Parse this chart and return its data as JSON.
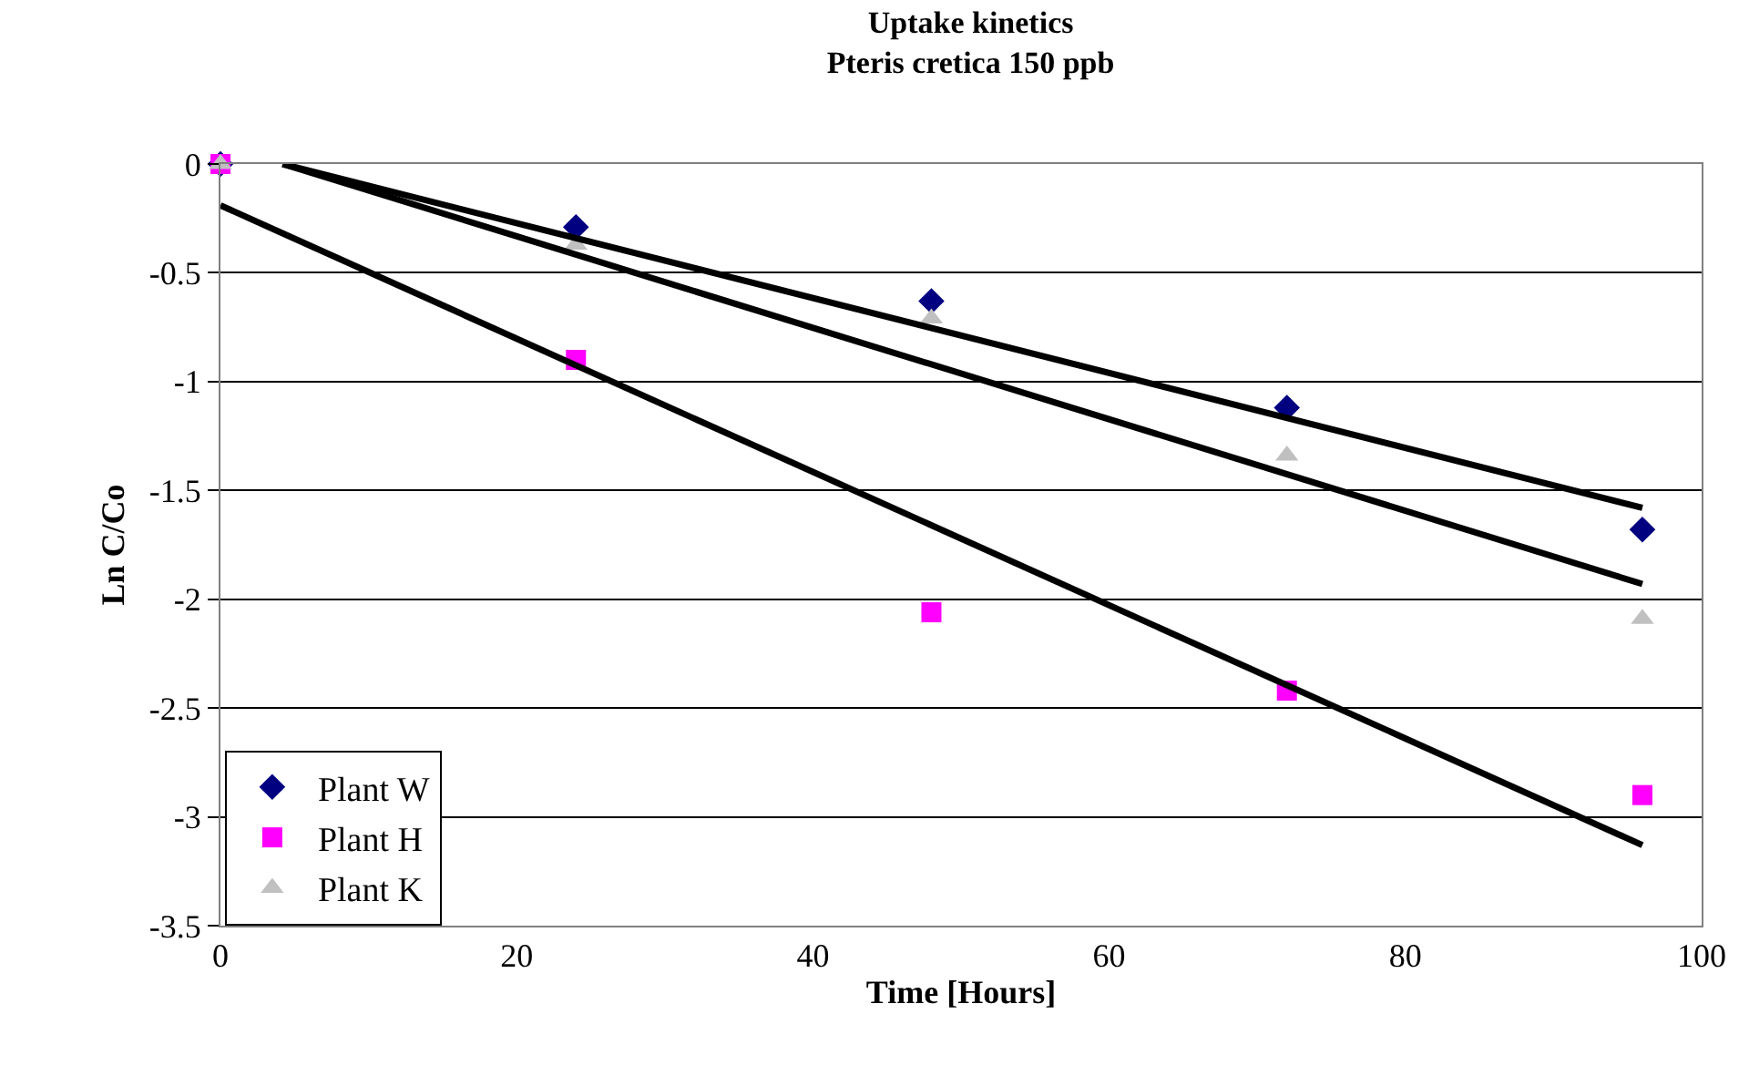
{
  "chart_data": {
    "type": "scatter",
    "title": "Uptake kinetics",
    "subtitle": "Pteris cretica 150 ppb",
    "xlabel": "Time [Hours]",
    "ylabel": "Ln C/Co",
    "x": [
      0,
      24,
      48,
      72,
      96
    ],
    "series": [
      {
        "name": "Plant W",
        "color": "#000080",
        "marker": "diamond",
        "values": [
          0,
          -0.29,
          -0.63,
          -1.12,
          -1.68
        ]
      },
      {
        "name": "Plant H",
        "color": "#ff00ff",
        "marker": "square",
        "values": [
          0,
          -0.9,
          -2.06,
          -2.42,
          -2.9
        ]
      },
      {
        "name": "Plant K",
        "color": "#c0c0c0",
        "marker": "triangle",
        "values": [
          0,
          -0.37,
          -0.71,
          -1.34,
          -2.09
        ]
      },
      {
        "type": "line",
        "color": "#000000",
        "marker": "none",
        "line_style": "solid",
        "x": [
          4.2,
          96
        ],
        "values": [
          0,
          -1.58
        ]
      },
      {
        "type": "line",
        "color": "#000000",
        "marker": "none",
        "line_style": "solid",
        "x": [
          4.2,
          96
        ],
        "values": [
          0,
          -1.93
        ]
      },
      {
        "type": "line",
        "color": "#000000",
        "marker": "none",
        "line_style": "solid",
        "x": [
          0,
          96
        ],
        "values": [
          -0.19,
          -3.13
        ]
      }
    ],
    "xlim": [
      0,
      100
    ],
    "xticks": [
      0,
      20,
      40,
      60,
      80,
      100
    ],
    "ylim": [
      -3.5,
      0
    ],
    "yticks": [
      0,
      -0.5,
      -1,
      -1.5,
      -2,
      -2.5,
      -3,
      -3.5
    ],
    "grid": "y",
    "legend": "bottom left"
  }
}
